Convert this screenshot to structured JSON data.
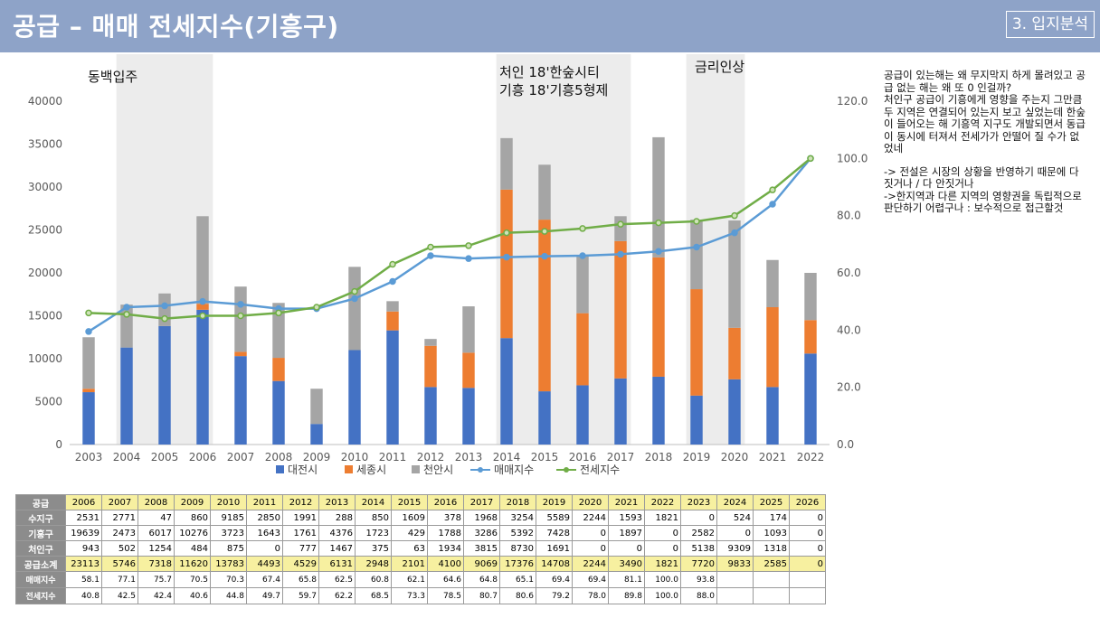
{
  "header": {
    "title": "공급 – 매매 전세지수(기흥구)",
    "section": "3. 입지분석"
  },
  "annotations": {
    "a1": "동백입주",
    "a2_line1": "처인 18'한숲시티",
    "a2_line2": "기흥 18'기흥5형제",
    "a3": "금리인상"
  },
  "notes": {
    "p1": "공급이 있는해는 왜 무지막지 하게 몰려있고 공급 없는 해는 왜 또 0 인걸까?\n처인구 공급이 기흥에게 영향을 주는지 그만큼 두 지역은 연결되어 있는지 보고 싶었는데 한숲이 들어오는 해 기흥역 지구도 개발되면서 동급이 동시에 터져서 전세가가 안떨어 질 수가 없었네",
    "p2": "-> 전설은 시장의 상황을 반영하기 때문에 다 짓거나 / 다 안짓거나\n->한지역과 다른 지역의 영향권을 독립적으로 판단하기 어렵구나 : 보수적으로 접근할것"
  },
  "colors": {
    "header": "#8ea3c8",
    "daejeon": "#4472c4",
    "sejong": "#ed7d31",
    "cheonan": "#a5a5a5",
    "maemae": "#5b9bd5",
    "jeonse": "#70ad47",
    "highlight": "#ececec"
  },
  "chart_data": {
    "type": "bar",
    "categories": [
      "2003",
      "2004",
      "2005",
      "2006",
      "2007",
      "2008",
      "2009",
      "2010",
      "2011",
      "2012",
      "2013",
      "2014",
      "2015",
      "2016",
      "2017",
      "2018",
      "2019",
      "2020",
      "2021",
      "2022"
    ],
    "series": [
      {
        "name": "대전시",
        "kind": "stacked-bar",
        "axis": "left",
        "values": [
          6100,
          11300,
          13800,
          15700,
          10300,
          7400,
          2400,
          11000,
          13300,
          6700,
          6600,
          12400,
          6200,
          6900,
          7700,
          7900,
          5700,
          7600,
          6700,
          10600
        ]
      },
      {
        "name": "세종시",
        "kind": "stacked-bar",
        "axis": "left",
        "values": [
          400,
          0,
          0,
          700,
          500,
          2700,
          0,
          0,
          2200,
          4800,
          4100,
          17300,
          20000,
          8400,
          16000,
          13900,
          12400,
          6000,
          9300,
          3900
        ]
      },
      {
        "name": "천안시",
        "kind": "stacked-bar",
        "axis": "left",
        "values": [
          6000,
          5000,
          3800,
          10200,
          7600,
          6400,
          4100,
          9700,
          1200,
          800,
          5400,
          6000,
          6400,
          6800,
          2900,
          14000,
          8100,
          12500,
          5500,
          5500
        ]
      },
      {
        "name": "매매지수",
        "kind": "line",
        "axis": "right",
        "values": [
          39.5,
          48.0,
          48.5,
          50.0,
          49.0,
          47.5,
          47.5,
          51.0,
          57.0,
          66.0,
          65.0,
          65.5,
          65.8,
          66.0,
          66.5,
          67.5,
          69.0,
          74.0,
          84.0,
          100.0
        ]
      },
      {
        "name": "전세지수",
        "kind": "line",
        "axis": "right",
        "values": [
          46.0,
          45.5,
          44.0,
          45.0,
          45.0,
          46.0,
          48.0,
          53.5,
          63.0,
          69.0,
          69.5,
          74.0,
          74.5,
          75.5,
          77.0,
          77.5,
          78.0,
          80.0,
          89.0,
          100.0
        ]
      }
    ],
    "ylim_left": [
      0,
      40000
    ],
    "yticks_left": [
      "0",
      "5000",
      "10000",
      "15000",
      "20000",
      "25000",
      "30000",
      "35000",
      "40000"
    ],
    "ylim_right": [
      0,
      120
    ],
    "yticks_right": [
      "0.0",
      "20.0",
      "40.0",
      "60.0",
      "80.0",
      "100.0",
      "120.0"
    ],
    "highlight_ranges": [
      [
        "2004",
        "2006"
      ],
      [
        "2014",
        "2017"
      ],
      [
        "2019",
        "2020"
      ]
    ],
    "legend_position": "bottom",
    "grid": false
  },
  "table": {
    "header_label": "공급",
    "years": [
      "2006",
      "2007",
      "2008",
      "2009",
      "2010",
      "2011",
      "2012",
      "2013",
      "2014",
      "2015",
      "2016",
      "2017",
      "2018",
      "2019",
      "2020",
      "2021",
      "2022",
      "2023",
      "2024",
      "2025",
      "2026"
    ],
    "rows": [
      {
        "label": "수지구",
        "values": [
          "2531",
          "2771",
          "47",
          "860",
          "9185",
          "2850",
          "1991",
          "288",
          "850",
          "1609",
          "378",
          "1968",
          "3254",
          "5589",
          "2244",
          "1593",
          "1821",
          "0",
          "524",
          "174",
          "0"
        ]
      },
      {
        "label": "기흥구",
        "values": [
          "19639",
          "2473",
          "6017",
          "10276",
          "3723",
          "1643",
          "1761",
          "4376",
          "1723",
          "429",
          "1788",
          "3286",
          "5392",
          "7428",
          "0",
          "1897",
          "0",
          "2582",
          "0",
          "1093",
          "0"
        ]
      },
      {
        "label": "처인구",
        "values": [
          "943",
          "502",
          "1254",
          "484",
          "875",
          "0",
          "777",
          "1467",
          "375",
          "63",
          "1934",
          "3815",
          "8730",
          "1691",
          "0",
          "0",
          "0",
          "5138",
          "9309",
          "1318",
          "0"
        ]
      },
      {
        "label": "공급소계",
        "sum": true,
        "values": [
          "23113",
          "5746",
          "7318",
          "11620",
          "13783",
          "4493",
          "4529",
          "6131",
          "2948",
          "2101",
          "4100",
          "9069",
          "17376",
          "14708",
          "2244",
          "3490",
          "1821",
          "7720",
          "9833",
          "2585",
          "0"
        ]
      },
      {
        "label": "매매지수",
        "small": true,
        "values": [
          "58.1",
          "77.1",
          "75.7",
          "70.5",
          "70.3",
          "67.4",
          "65.8",
          "62.5",
          "60.8",
          "62.1",
          "64.6",
          "64.8",
          "65.1",
          "69.4",
          "69.4",
          "81.1",
          "100.0",
          "93.8",
          "",
          "",
          ""
        ]
      },
      {
        "label": "전세지수",
        "small": true,
        "values": [
          "40.8",
          "42.5",
          "42.4",
          "40.6",
          "44.8",
          "49.7",
          "59.7",
          "62.2",
          "68.5",
          "73.3",
          "78.5",
          "80.7",
          "80.6",
          "79.2",
          "78.0",
          "89.8",
          "100.0",
          "88.0",
          "",
          "",
          ""
        ]
      }
    ]
  }
}
